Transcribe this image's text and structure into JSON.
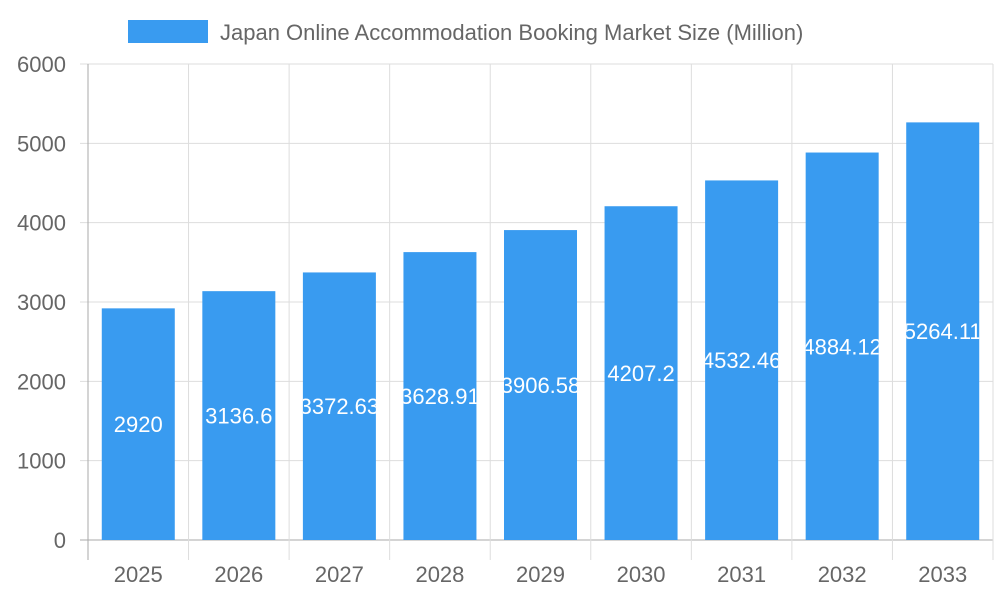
{
  "chart_data": {
    "type": "bar",
    "categories": [
      "2025",
      "2026",
      "2027",
      "2028",
      "2029",
      "2030",
      "2031",
      "2032",
      "2033"
    ],
    "series": [
      {
        "name": "Japan Online Accommodation Booking Market Size (Million)",
        "values": [
          2920,
          3136.6,
          3372.63,
          3628.91,
          3906.58,
          4207.2,
          4532.46,
          4884.12,
          5264.11
        ]
      }
    ],
    "data_labels": [
      "2920",
      "3136.6",
      "3372.63",
      "3628.91",
      "3906.58",
      "4207.2",
      "4532.46",
      "4884.12",
      "5264.11"
    ],
    "yticks": [
      "0",
      "1000",
      "2000",
      "3000",
      "4000",
      "5000",
      "6000"
    ],
    "ylim": [
      0,
      6000
    ],
    "grid": true,
    "legend": "top",
    "color": "#399BF0"
  }
}
